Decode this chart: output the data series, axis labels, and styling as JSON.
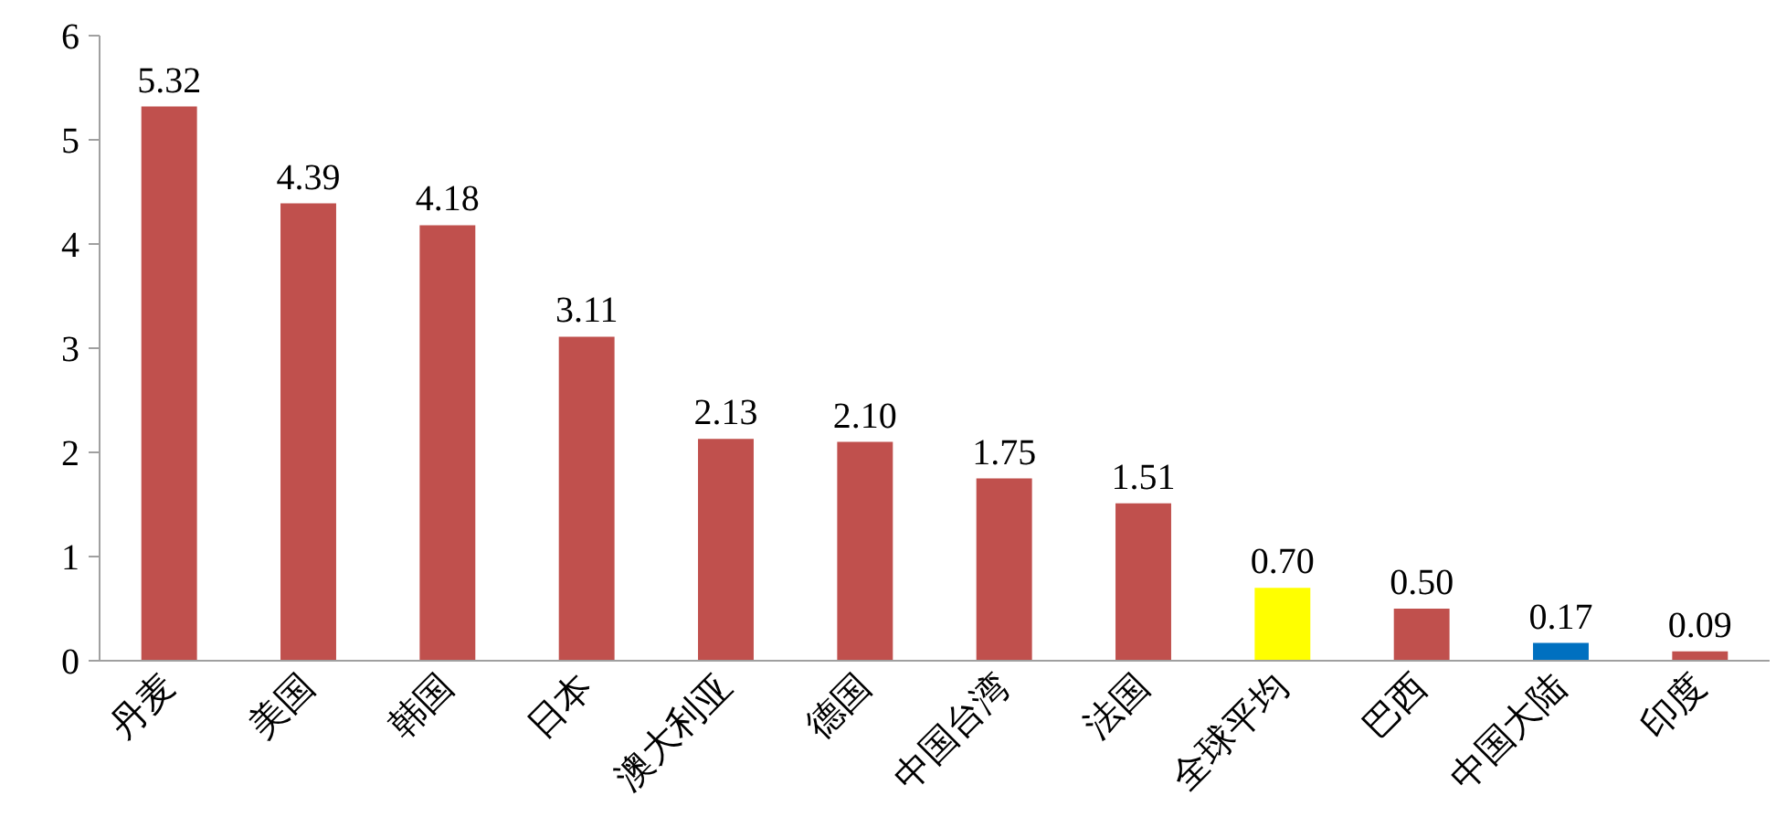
{
  "chart_data": {
    "type": "bar",
    "categories": [
      "丹麦",
      "美国",
      "韩国",
      "日本",
      "澳大利亚",
      "德国",
      "中国台湾",
      "法国",
      "全球平均",
      "巴西",
      "中国大陆",
      "印度"
    ],
    "values": [
      5.32,
      4.39,
      4.18,
      3.11,
      2.13,
      2.1,
      1.75,
      1.51,
      0.7,
      0.5,
      0.17,
      0.09
    ],
    "value_labels": [
      "5.32",
      "4.39",
      "4.18",
      "3.11",
      "2.13",
      "2.10",
      "1.75",
      "1.51",
      "0.70",
      "0.50",
      "0.17",
      "0.09"
    ],
    "colors": [
      "#c0504d",
      "#c0504d",
      "#c0504d",
      "#c0504d",
      "#c0504d",
      "#c0504d",
      "#c0504d",
      "#c0504d",
      "#ffff00",
      "#c0504d",
      "#0070c0",
      "#c0504d"
    ],
    "ylim": [
      0,
      6
    ],
    "yticks": [
      0,
      1,
      2,
      3,
      4,
      5,
      6
    ],
    "grid": false
  }
}
